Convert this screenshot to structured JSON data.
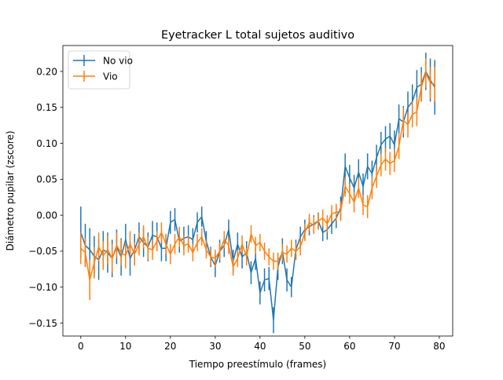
{
  "chart_data": {
    "type": "line",
    "title": "Eyetracker L total sujetos auditivo",
    "xlabel": "Tiempo preestímulo (frames)",
    "ylabel": "Diámetro pupilar (zscore)",
    "xlim": [
      -4,
      83
    ],
    "ylim": [
      -0.168,
      0.236
    ],
    "xticks": [
      "0",
      "10",
      "20",
      "30",
      "40",
      "50",
      "60",
      "70",
      "80"
    ],
    "yticks": [
      "−0.15",
      "−0.10",
      "−0.05",
      "0.00",
      "0.05",
      "0.10",
      "0.15",
      "0.20"
    ],
    "legend": "upper-left",
    "error_bars": true,
    "x": [
      0,
      1,
      2,
      3,
      4,
      5,
      6,
      7,
      8,
      9,
      10,
      11,
      12,
      13,
      14,
      15,
      16,
      17,
      18,
      19,
      20,
      21,
      22,
      23,
      24,
      25,
      26,
      27,
      28,
      29,
      30,
      31,
      32,
      33,
      34,
      35,
      36,
      37,
      38,
      39,
      40,
      41,
      42,
      43,
      44,
      45,
      46,
      47,
      48,
      49,
      50,
      51,
      52,
      53,
      54,
      55,
      56,
      57,
      58,
      59,
      60,
      61,
      62,
      63,
      64,
      65,
      66,
      67,
      68,
      69,
      70,
      71,
      72,
      73,
      74,
      75,
      76,
      77,
      78,
      79
    ],
    "series": [
      {
        "name": "No vio",
        "color": "#1f77b4",
        "values": [
          -0.024,
          -0.042,
          -0.048,
          -0.057,
          -0.062,
          -0.048,
          -0.052,
          -0.06,
          -0.044,
          -0.058,
          -0.034,
          -0.06,
          -0.048,
          -0.03,
          -0.038,
          -0.044,
          -0.028,
          -0.03,
          -0.046,
          -0.046,
          -0.01,
          -0.006,
          -0.036,
          -0.032,
          -0.03,
          -0.034,
          -0.01,
          -0.002,
          -0.036,
          -0.058,
          -0.07,
          -0.05,
          -0.042,
          -0.02,
          -0.064,
          -0.04,
          -0.058,
          -0.052,
          -0.08,
          -0.06,
          -0.108,
          -0.09,
          -0.088,
          -0.146,
          -0.072,
          -0.05,
          -0.09,
          -0.1,
          -0.048,
          -0.03,
          -0.02,
          -0.016,
          -0.012,
          -0.008,
          -0.024,
          -0.02,
          -0.012,
          -0.004,
          0.01,
          0.068,
          0.052,
          0.038,
          0.06,
          0.04,
          0.068,
          0.058,
          0.08,
          0.098,
          0.106,
          0.11,
          0.098,
          0.134,
          0.13,
          0.15,
          0.158,
          0.178,
          0.182,
          0.2,
          0.188,
          0.178
        ],
        "errors": [
          0.036,
          0.03,
          0.03,
          0.028,
          0.028,
          0.026,
          0.028,
          0.026,
          0.024,
          0.026,
          0.022,
          0.024,
          0.022,
          0.02,
          0.02,
          0.02,
          0.02,
          0.02,
          0.018,
          0.018,
          0.016,
          0.016,
          0.016,
          0.016,
          0.016,
          0.016,
          0.014,
          0.014,
          0.014,
          0.014,
          0.016,
          0.016,
          0.016,
          0.014,
          0.016,
          0.016,
          0.016,
          0.016,
          0.016,
          0.016,
          0.016,
          0.016,
          0.016,
          0.018,
          0.018,
          0.018,
          0.016,
          0.014,
          0.014,
          0.014,
          0.014,
          0.012,
          0.012,
          0.012,
          0.012,
          0.014,
          0.014,
          0.014,
          0.016,
          0.018,
          0.018,
          0.018,
          0.018,
          0.018,
          0.018,
          0.018,
          0.018,
          0.018,
          0.018,
          0.018,
          0.02,
          0.02,
          0.022,
          0.022,
          0.024,
          0.024,
          0.024,
          0.026,
          0.03,
          0.038
        ]
      },
      {
        "name": "Vio",
        "color": "#ff7f0e",
        "values": [
          -0.046,
          -0.052,
          -0.09,
          -0.066,
          -0.044,
          -0.056,
          -0.048,
          -0.06,
          -0.042,
          -0.052,
          -0.056,
          -0.04,
          -0.054,
          -0.04,
          -0.03,
          -0.046,
          -0.048,
          -0.036,
          -0.024,
          -0.04,
          -0.054,
          -0.04,
          -0.03,
          -0.042,
          -0.04,
          -0.052,
          -0.038,
          -0.03,
          -0.048,
          -0.058,
          -0.06,
          -0.05,
          -0.034,
          -0.042,
          -0.072,
          -0.06,
          -0.04,
          -0.058,
          -0.026,
          -0.042,
          -0.038,
          -0.05,
          -0.058,
          -0.064,
          -0.064,
          -0.052,
          -0.054,
          -0.046,
          -0.05,
          -0.044,
          -0.024,
          -0.01,
          -0.014,
          -0.008,
          -0.004,
          -0.012,
          0.002,
          0.004,
          0.006,
          0.04,
          0.03,
          0.018,
          0.038,
          0.014,
          0.012,
          0.038,
          0.054,
          0.07,
          0.078,
          0.072,
          0.076,
          0.096,
          0.132,
          0.126,
          0.14,
          0.144,
          0.178,
          0.198,
          0.184,
          0.182
        ],
        "errors": [
          0.022,
          0.02,
          0.028,
          0.022,
          0.02,
          0.02,
          0.02,
          0.02,
          0.018,
          0.018,
          0.018,
          0.018,
          0.016,
          0.016,
          0.016,
          0.016,
          0.014,
          0.014,
          0.014,
          0.014,
          0.014,
          0.014,
          0.014,
          0.014,
          0.012,
          0.012,
          0.012,
          0.012,
          0.012,
          0.012,
          0.012,
          0.012,
          0.012,
          0.012,
          0.012,
          0.012,
          0.012,
          0.012,
          0.012,
          0.012,
          0.012,
          0.012,
          0.012,
          0.012,
          0.012,
          0.012,
          0.012,
          0.012,
          0.012,
          0.012,
          0.012,
          0.012,
          0.012,
          0.012,
          0.012,
          0.012,
          0.012,
          0.012,
          0.014,
          0.014,
          0.014,
          0.014,
          0.014,
          0.014,
          0.016,
          0.016,
          0.016,
          0.016,
          0.016,
          0.016,
          0.016,
          0.018,
          0.018,
          0.018,
          0.018,
          0.02,
          0.02,
          0.02,
          0.022,
          0.024
        ]
      }
    ]
  }
}
